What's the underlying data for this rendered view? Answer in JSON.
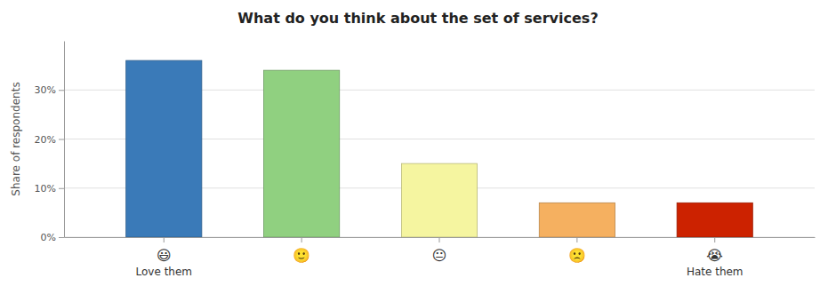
{
  "chart_data": {
    "type": "bar",
    "title": "What do you think about the set of services?",
    "categories": [
      "Love them",
      null,
      null,
      null,
      "Hate them"
    ],
    "annotations": [
      "😃",
      "🙂",
      "😐",
      "🙁",
      "😭"
    ],
    "values": [
      36,
      34,
      15,
      7,
      7
    ],
    "colors": [
      "#3a7ab8",
      "#90d080",
      "#f5f5a0",
      "#f5b060",
      "#cc2200"
    ],
    "ylabel": "Share of respondents",
    "ylim": [
      0,
      40
    ],
    "yticks": [
      {
        "value": 0,
        "label": "0%"
      },
      {
        "value": 10,
        "label": "10%"
      },
      {
        "value": 20,
        "label": "20%"
      },
      {
        "value": 30,
        "label": "30%"
      }
    ],
    "grid": true
  }
}
